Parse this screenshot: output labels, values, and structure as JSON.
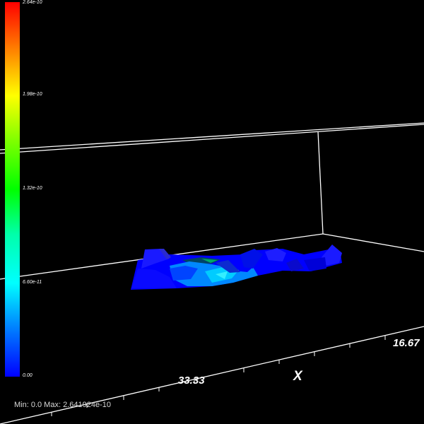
{
  "colorbar": {
    "ticks": [
      "2.64e-10",
      "1.98e-10",
      "1.32e-10",
      "6.60e-11",
      "0.00"
    ],
    "colors": [
      "#ff0000",
      "#ff7a00",
      "#ffff00",
      "#7fff00",
      "#00ff00",
      "#00ffaa",
      "#00ffff",
      "#0080ff",
      "#0000ff"
    ]
  },
  "axes": {
    "x_title": "X",
    "x_ticks": [
      "33.33",
      "16.67"
    ],
    "line_color": "#ffffff"
  },
  "status": {
    "minmax_text": "Min: 0.0 Max: 2.641924e-10"
  },
  "scene": {
    "background": "#000000",
    "surface_colors": [
      "#0000ff",
      "#0033ff",
      "#00ccff",
      "#00aa66"
    ]
  }
}
